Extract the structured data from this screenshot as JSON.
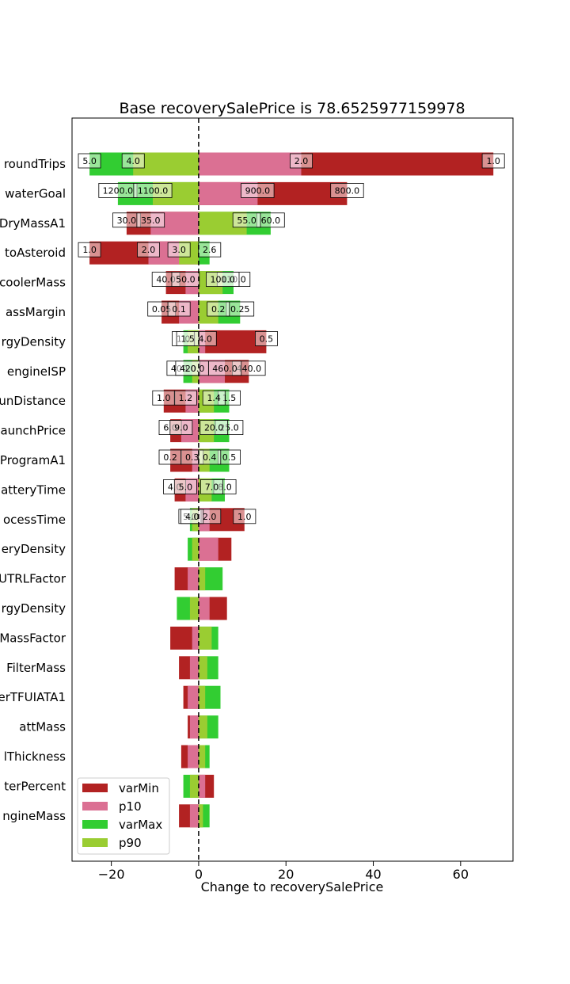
{
  "chart_data": {
    "type": "bar",
    "orientation": "horizontal",
    "title": "Base recoverySalePrice is 78.6525977159978",
    "xlabel": "Change to recoverySalePrice",
    "ylabel": "",
    "xlim": [
      -29,
      72
    ],
    "xticks": [
      -20,
      0,
      20,
      40,
      60
    ],
    "grid": false,
    "baseline": 0,
    "legend_placement": "bottom-left",
    "categories": [
      "roundTrips",
      "waterGoal",
      "DryMassA1",
      "toAsteroid",
      "coolerMass",
      "assMargin",
      "rgyDensity",
      "engineISP",
      "unDistance",
      "aunchPrice",
      "ProgramA1",
      "atteryTime",
      "ocessTime",
      "eryDensity",
      "UTRLFactor",
      "rgyDensity",
      "MassFactor",
      "FilterMass",
      "erTFUIATA1",
      "attMass",
      "lThickness",
      "terPercent",
      "ngineMass"
    ],
    "series": [
      {
        "name": "varMin",
        "color": "#b22222",
        "values": [
          67.5,
          34.0,
          -16.5,
          -25.0,
          -7.5,
          -8.5,
          15.5,
          11.5,
          -8.0,
          -6.5,
          -6.5,
          -5.5,
          10.5,
          7.5,
          -5.5,
          6.5,
          -6.5,
          -4.5,
          -3.5,
          -2.5,
          -4.0,
          3.5,
          -4.5
        ],
        "annotations": [
          "1.0",
          "800.0",
          "30.0",
          "1.0",
          "40.0",
          "0.05",
          "0.5",
          "440.0",
          "1.0",
          "6.0",
          "0.2",
          "4.0",
          "1.0",
          null,
          null,
          null,
          null,
          null,
          null,
          null,
          null,
          null,
          null
        ]
      },
      {
        "name": "p10",
        "color": "#db7093",
        "values": [
          23.5,
          13.5,
          -11.0,
          -11.5,
          -3.0,
          -4.5,
          1.5,
          6.0,
          -3.0,
          -4.0,
          -1.5,
          -3.0,
          2.5,
          4.5,
          -2.5,
          2.5,
          -1.5,
          -2.0,
          -2.5,
          -2.0,
          -2.5,
          1.5,
          -2.0
        ],
        "annotations": [
          "2.0",
          "900.0",
          "35.0",
          "2.0",
          "50.0",
          "0.1",
          "4.0",
          "460.0",
          "1.2",
          "9.0",
          "0.3",
          "5.0",
          "2.0",
          null,
          null,
          null,
          null,
          null,
          null,
          null,
          null,
          null,
          null
        ]
      },
      {
        "name": "varMax",
        "color": "#32cd32",
        "values": [
          -25.0,
          -18.5,
          16.5,
          2.5,
          8.0,
          9.5,
          -3.5,
          -3.5,
          7.0,
          7.0,
          7.0,
          6.0,
          -2.0,
          -2.5,
          5.5,
          -5.0,
          4.5,
          4.5,
          5.0,
          4.5,
          2.5,
          -3.5,
          2.5
        ],
        "annotations": [
          "5.0",
          "1200.0",
          "60.0",
          "2.6",
          "110.0",
          "0.25",
          "1.0",
          "400.0",
          "1.5",
          "25.0",
          "0.5",
          "8.0",
          "5.0",
          null,
          null,
          null,
          null,
          null,
          null,
          null,
          null,
          null,
          null
        ]
      },
      {
        "name": "p90",
        "color": "#9acd32",
        "values": [
          -15.0,
          -10.5,
          11.0,
          -4.5,
          5.5,
          4.5,
          -2.5,
          -1.5,
          3.5,
          3.5,
          2.5,
          3.0,
          -1.5,
          -1.5,
          1.5,
          -2.0,
          3.0,
          2.0,
          1.5,
          2.0,
          1.5,
          -2.0,
          1.0
        ],
        "annotations": [
          "4.0",
          "1100.0",
          "55.0",
          "3.0",
          "100.0",
          "0.2",
          "1.5",
          "420.0",
          "1.4",
          "20.0",
          "0.4",
          "7.0",
          "4.0",
          null,
          null,
          null,
          null,
          null,
          null,
          null,
          null,
          null,
          null
        ]
      }
    ]
  }
}
